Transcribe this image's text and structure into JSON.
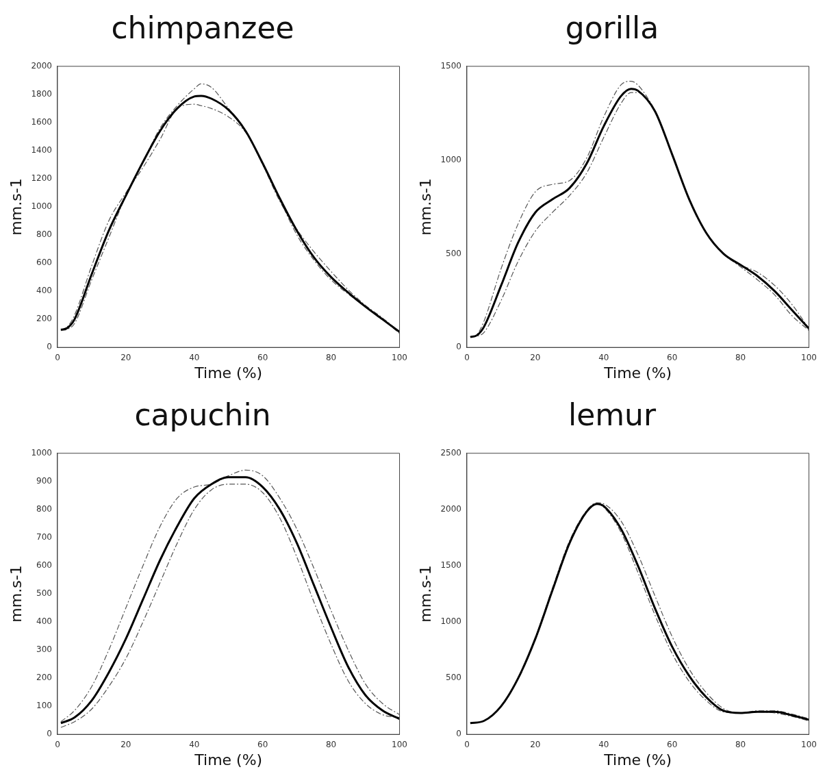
{
  "chart_data": [
    {
      "type": "line",
      "title": "chimpanzee",
      "xlabel": "Time (%)",
      "ylabel": "mm.s-1",
      "x": [
        1,
        3,
        5,
        10,
        15,
        20,
        25,
        30,
        35,
        40,
        42,
        45,
        50,
        55,
        60,
        65,
        70,
        75,
        80,
        85,
        90,
        95,
        100
      ],
      "xlim": [
        0,
        100
      ],
      "xticks": [
        0,
        20,
        40,
        60,
        80,
        100
      ],
      "ylim": [
        0,
        2000
      ],
      "yticks": [
        0,
        200,
        400,
        600,
        800,
        1000,
        1200,
        1400,
        1600,
        1800,
        2000
      ],
      "grid": false,
      "legend": false,
      "marker": "none",
      "series": [
        {
          "color": "#000000",
          "line_style": "solid",
          "values": [
            125,
            140,
            200,
            520,
            830,
            1080,
            1320,
            1540,
            1700,
            1785,
            1790,
            1770,
            1690,
            1540,
            1310,
            1060,
            830,
            640,
            500,
            390,
            290,
            200,
            110
          ]
        },
        {
          "color": "#555555",
          "line_style": "dashed",
          "values": [
            120,
            130,
            170,
            480,
            780,
            1080,
            1320,
            1560,
            1720,
            1840,
            1875,
            1850,
            1700,
            1540,
            1300,
            1040,
            840,
            680,
            540,
            410,
            300,
            210,
            110
          ]
        },
        {
          "color": "#555555",
          "line_style": "dashed",
          "values": [
            120,
            150,
            230,
            580,
            900,
            1100,
            1280,
            1480,
            1700,
            1730,
            1720,
            1700,
            1640,
            1530,
            1300,
            1050,
            800,
            620,
            480,
            380,
            290,
            200,
            100
          ]
        }
      ]
    },
    {
      "type": "line",
      "title": "gorilla",
      "xlabel": "Time (%)",
      "ylabel": "mm.s-1",
      "x": [
        1,
        3,
        5,
        10,
        15,
        20,
        25,
        30,
        35,
        40,
        45,
        48,
        50,
        55,
        60,
        65,
        70,
        75,
        80,
        85,
        90,
        95,
        100
      ],
      "xlim": [
        0,
        100
      ],
      "xticks": [
        0,
        20,
        40,
        60,
        80,
        100
      ],
      "ylim": [
        0,
        1500
      ],
      "yticks": [
        0,
        500,
        1000,
        1500
      ],
      "grid": false,
      "legend": false,
      "marker": "none",
      "series": [
        {
          "color": "#000000",
          "line_style": "solid",
          "values": [
            55,
            65,
            110,
            330,
            560,
            720,
            790,
            850,
            980,
            1180,
            1340,
            1380,
            1370,
            1260,
            1030,
            790,
            610,
            500,
            440,
            380,
            300,
            200,
            100
          ]
        },
        {
          "color": "#555555",
          "line_style": "dashed",
          "values": [
            55,
            70,
            140,
            420,
            660,
            830,
            870,
            890,
            1010,
            1230,
            1400,
            1420,
            1400,
            1260,
            1030,
            790,
            610,
            500,
            430,
            360,
            280,
            170,
            90
          ]
        },
        {
          "color": "#555555",
          "line_style": "dashed",
          "values": [
            55,
            60,
            80,
            250,
            460,
            620,
            720,
            810,
            930,
            1120,
            1300,
            1360,
            1360,
            1260,
            1030,
            790,
            610,
            500,
            440,
            400,
            330,
            230,
            100
          ]
        }
      ]
    },
    {
      "type": "line",
      "title": "capuchin",
      "xlabel": "Time (%)",
      "ylabel": "mm.s-1",
      "x": [
        1,
        5,
        10,
        15,
        20,
        25,
        30,
        35,
        40,
        45,
        50,
        55,
        60,
        65,
        70,
        75,
        80,
        85,
        90,
        95,
        100
      ],
      "xlim": [
        0,
        100
      ],
      "xticks": [
        0,
        20,
        40,
        60,
        80,
        100
      ],
      "ylim": [
        0,
        1000
      ],
      "yticks": [
        0,
        100,
        200,
        300,
        400,
        500,
        600,
        700,
        800,
        900,
        1000
      ],
      "grid": false,
      "legend": false,
      "marker": "none",
      "series": [
        {
          "color": "#000000",
          "line_style": "solid",
          "values": [
            40,
            60,
            120,
            220,
            340,
            480,
            620,
            740,
            840,
            890,
            915,
            915,
            880,
            800,
            680,
            530,
            380,
            240,
            140,
            85,
            55
          ]
        },
        {
          "color": "#555555",
          "line_style": "dashed",
          "values": [
            45,
            85,
            170,
            300,
            450,
            600,
            740,
            840,
            880,
            890,
            920,
            940,
            920,
            840,
            730,
            590,
            440,
            300,
            180,
            110,
            70
          ]
        },
        {
          "color": "#555555",
          "line_style": "dashed",
          "values": [
            25,
            45,
            90,
            170,
            270,
            400,
            540,
            680,
            800,
            870,
            890,
            890,
            860,
            770,
            630,
            470,
            320,
            190,
            110,
            70,
            60
          ]
        }
      ]
    },
    {
      "type": "line",
      "title": "lemur",
      "xlabel": "Time (%)",
      "ylabel": "mm.s-1",
      "x": [
        1,
        5,
        10,
        15,
        20,
        25,
        30,
        35,
        38,
        40,
        45,
        50,
        55,
        60,
        65,
        70,
        75,
        80,
        85,
        90,
        95,
        100
      ],
      "xlim": [
        0,
        100
      ],
      "xticks": [
        0,
        20,
        40,
        60,
        80,
        100
      ],
      "ylim": [
        0,
        2500
      ],
      "yticks": [
        0,
        500,
        1000,
        1500,
        2000,
        2500
      ],
      "grid": false,
      "legend": false,
      "marker": "none",
      "series": [
        {
          "color": "#000000",
          "line_style": "solid",
          "values": [
            100,
            120,
            250,
            500,
            850,
            1280,
            1700,
            1980,
            2050,
            2030,
            1830,
            1500,
            1120,
            780,
            520,
            330,
            210,
            190,
            200,
            200,
            170,
            130
          ]
        },
        {
          "color": "#555555",
          "line_style": "dashed",
          "values": [
            100,
            120,
            250,
            500,
            860,
            1300,
            1720,
            1990,
            2060,
            2050,
            1900,
            1600,
            1230,
            870,
            580,
            370,
            230,
            190,
            210,
            210,
            180,
            140
          ]
        },
        {
          "color": "#555555",
          "line_style": "dashed",
          "values": [
            100,
            120,
            250,
            500,
            840,
            1280,
            1700,
            1980,
            2050,
            2020,
            1800,
            1440,
            1060,
            720,
            470,
            300,
            200,
            190,
            200,
            190,
            160,
            120
          ]
        }
      ]
    }
  ]
}
